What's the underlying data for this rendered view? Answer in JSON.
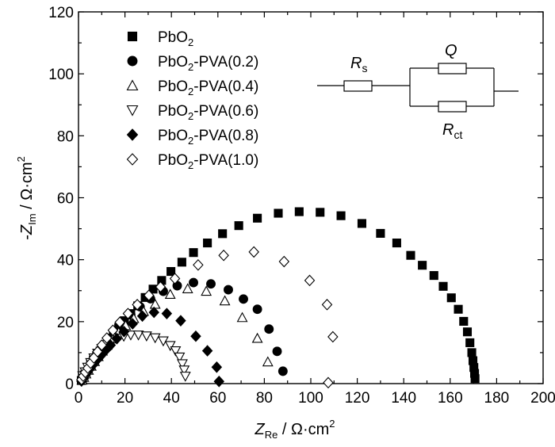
{
  "chart_data": {
    "type": "scatter",
    "x_axis": {
      "title_main": "Z",
      "title_sub": "Re",
      "title_unit": " / Ω·cm",
      "title_sup": "2",
      "range": [
        0,
        200
      ],
      "ticks": [
        "0",
        "20",
        "40",
        "60",
        "80",
        "100",
        "120",
        "140",
        "160",
        "180",
        "200"
      ]
    },
    "y_axis": {
      "title_prefix": "-",
      "title_main": "Z",
      "title_sub": "Im",
      "title_unit": " / Ω·cm",
      "title_sup": "2",
      "range": [
        0,
        120
      ],
      "ticks": [
        "0",
        "20",
        "40",
        "60",
        "80",
        "100",
        "120"
      ]
    },
    "grid": false,
    "legend_position": "top-left",
    "series": [
      {
        "name": "PbO2",
        "label_parts": [
          "PbO",
          "2",
          ""
        ],
        "marker": "square",
        "filled": true,
        "x": [
          1.2,
          1.8,
          2.5,
          3.3,
          4.2,
          5.2,
          6.4,
          7.8,
          9.3,
          11.0,
          12.9,
          15.0,
          17.3,
          19.8,
          22.5,
          25.5,
          28.7,
          32.1,
          35.8,
          39.8,
          44.5,
          49.5,
          55.5,
          62.0,
          69.0,
          77.0,
          86.0,
          95.0,
          104.0,
          113.0,
          122.0,
          130.0,
          137.0,
          143.0,
          148.0,
          153.0,
          157.0,
          160.5,
          163.5,
          165.8,
          167.4,
          168.5,
          169.3,
          169.8,
          170.2,
          170.5,
          170.7
        ],
        "y": [
          1.0,
          1.8,
          2.8,
          3.8,
          5.0,
          6.2,
          7.6,
          9.0,
          10.5,
          12.2,
          14.0,
          16.0,
          18.1,
          20.3,
          22.6,
          25.1,
          27.8,
          30.5,
          33.3,
          36.2,
          39.2,
          42.3,
          45.4,
          48.4,
          51.0,
          53.4,
          55.0,
          55.5,
          55.3,
          54.2,
          51.7,
          48.5,
          45.4,
          41.4,
          38.2,
          34.9,
          31.4,
          27.7,
          24.0,
          20.1,
          16.7,
          13.2,
          10.0,
          7.4,
          5.2,
          3.3,
          1.6
        ]
      },
      {
        "name": "PbO2-PVA(0.2)",
        "label_parts": [
          "PbO",
          "2",
          "-PVA(0.2)"
        ],
        "marker": "circle",
        "filled": true,
        "x": [
          1.5,
          2.3,
          3.3,
          4.4,
          5.7,
          7.2,
          9.0,
          11.0,
          13.3,
          16.0,
          19.0,
          22.5,
          26.5,
          31.0,
          36.5,
          42.5,
          49.5,
          57.0,
          64.5,
          71.0,
          77.0,
          82.0,
          85.5,
          88.0
        ],
        "y": [
          1.3,
          2.4,
          3.6,
          5.0,
          6.6,
          8.3,
          10.2,
          12.3,
          14.6,
          17.0,
          19.6,
          22.2,
          24.8,
          27.4,
          29.8,
          31.6,
          32.6,
          32.2,
          30.3,
          27.3,
          24.0,
          17.6,
          10.4,
          4.0
        ]
      },
      {
        "name": "PbO2-PVA(0.4)",
        "label_parts": [
          "PbO",
          "2",
          "-PVA(0.4)"
        ],
        "marker": "triangle-up",
        "filled": false,
        "x": [
          1.5,
          2.3,
          3.2,
          4.3,
          5.5,
          6.9,
          8.5,
          10.3,
          12.4,
          14.7,
          17.3,
          20.3,
          23.8,
          28.0,
          33.0,
          39.5,
          47.0,
          55.0,
          63.0,
          70.5,
          77.0,
          81.5
        ],
        "y": [
          1.1,
          2.0,
          3.1,
          4.3,
          5.6,
          7.1,
          8.7,
          10.5,
          12.4,
          14.4,
          16.5,
          18.7,
          21.0,
          23.3,
          25.6,
          28.8,
          30.6,
          29.8,
          26.7,
          21.3,
          14.6,
          7.0
        ]
      },
      {
        "name": "PbO2-PVA(0.6)",
        "label_parts": [
          "PbO",
          "2",
          "-PVA(0.6)"
        ],
        "marker": "triangle-down",
        "filled": false,
        "x": [
          1.8,
          2.8,
          3.9,
          5.2,
          6.6,
          8.2,
          10.0,
          12.0,
          14.3,
          16.8,
          19.5,
          22.5,
          25.8,
          29.3,
          33.0,
          36.5,
          39.5,
          41.8,
          43.5,
          44.7,
          45.5,
          46.0
        ],
        "y": [
          2.5,
          3.8,
          5.3,
          6.8,
          8.3,
          9.8,
          11.3,
          12.6,
          13.8,
          14.7,
          15.3,
          15.7,
          15.7,
          15.4,
          14.8,
          13.8,
          12.3,
          10.6,
          8.6,
          6.4,
          4.4,
          2.4
        ]
      },
      {
        "name": "PbO2-PVA(0.8)",
        "label_parts": [
          "PbO",
          "2",
          "-PVA(0.8)"
        ],
        "marker": "diamond",
        "filled": true,
        "x": [
          1.3,
          2.0,
          2.8,
          3.8,
          4.9,
          6.2,
          7.7,
          9.5,
          11.5,
          13.8,
          16.5,
          19.6,
          23.3,
          27.5,
          32.5,
          38.0,
          44.0,
          50.5,
          55.5,
          59.5,
          60.5
        ],
        "y": [
          0.8,
          1.6,
          2.6,
          3.6,
          4.7,
          6.0,
          7.4,
          8.9,
          10.6,
          12.4,
          14.5,
          16.8,
          19.3,
          21.8,
          23.0,
          22.6,
          20.3,
          15.3,
          10.6,
          5.3,
          0.7
        ]
      },
      {
        "name": "PbO2-PVA(1.0)",
        "label_parts": [
          "PbO",
          "2",
          "-PVA(1.0)"
        ],
        "marker": "diamond",
        "filled": false,
        "x": [
          1.3,
          2.0,
          2.9,
          4.0,
          5.2,
          6.6,
          8.2,
          10.0,
          12.2,
          14.8,
          17.8,
          21.3,
          25.3,
          30.3,
          35.3,
          41.5,
          51.5,
          62.5,
          75.5,
          88.5,
          99.5,
          107.0,
          109.5,
          107.5
        ],
        "y": [
          1.3,
          2.4,
          3.6,
          5.0,
          6.6,
          8.3,
          10.3,
          12.4,
          14.7,
          17.2,
          19.8,
          22.6,
          25.5,
          28.5,
          31.2,
          33.9,
          38.3,
          41.4,
          42.5,
          39.4,
          33.3,
          25.5,
          15.1,
          0.3
        ]
      }
    ],
    "inset_circuit": {
      "resistor_label_main": "R",
      "resistor_label_sub": "s",
      "cpe_label": "Q",
      "charge_transfer_label_main": "R",
      "charge_transfer_label_sub": "ct"
    }
  }
}
